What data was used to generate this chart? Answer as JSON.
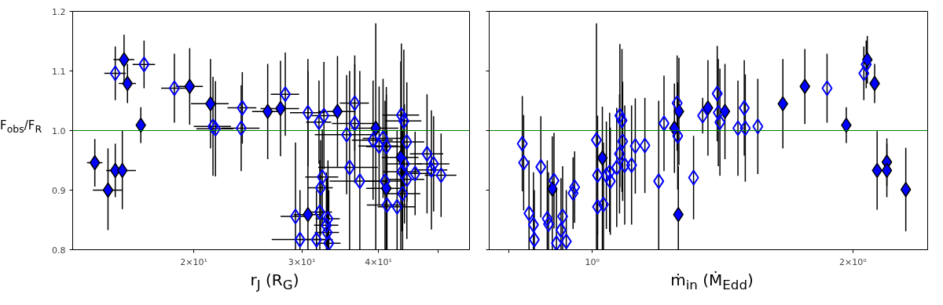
{
  "chart_data": [
    {
      "type": "scatter",
      "xlabel": "r$_{J}$ (R$_{G}$)",
      "ylabel": "F$_{obs}$/F$_{R}$",
      "log": "x",
      "grid": false,
      "marker": "diamond",
      "xlim": [
        12.7,
        56.3
      ],
      "ylim": [
        0.8,
        1.2
      ],
      "xticks": [
        {
          "value": 20,
          "label": "2×10¹"
        },
        {
          "value": 30,
          "label": "3×10¹"
        },
        {
          "value": 40,
          "label": "4×10¹"
        },
        {
          "value": 50,
          "label": null
        }
      ],
      "yticks": [
        {
          "value": 0.8,
          "label": "0.8"
        },
        {
          "value": 0.9,
          "label": "0.9"
        },
        {
          "value": 1.0,
          "label": "1.0"
        },
        {
          "value": 1.1,
          "label": "1.1"
        },
        {
          "value": 1.2,
          "label": "1.2"
        }
      ],
      "ref_lines": [
        {
          "axis": "y",
          "value": 1.0,
          "label": null,
          "color": "#008000"
        }
      ],
      "series": [
        {
          "color": "#0000ff",
          "x": [
            13.8,
            14.5,
            14.9,
            15.3,
            15.4,
            15.6,
            16.4,
            19.7,
            21.3,
            26.4,
            27.7,
            34.3,
            30.7,
            39.6,
            43.5,
            41.2
          ],
          "values": [
            0.946,
            0.9,
            0.933,
            0.933,
            1.119,
            1.079,
            1.009,
            1.074,
            1.045,
            1.032,
            1.037,
            1.032,
            0.859,
            1.004,
            0.955,
            0.903
          ],
          "errors": [
            0.04,
            [
              0.833,
              0.97
            ],
            0.045,
            [
              0.868,
              1.0
            ],
            0.042,
            0.033,
            0.03,
            0.064,
            0.075,
            0.08,
            0.08,
            0.093,
            [
              0.8,
              1.1
            ],
            [
              0.8,
              1.18
            ],
            [
              0.8,
              1.116
            ],
            [
              0.8,
              1.06
            ]
          ],
          "xerrors": [
            0.4,
            0.8,
            0.5,
            0.8,
            0.6,
            0.5,
            null,
            1.0,
            1.5,
            1.5,
            2,
            2.4,
            1.6,
            3.5,
            3,
            3
          ]
        },
        {
          "color": "#0000ff",
          "x": [
            14.9,
            16.6,
            18.6,
            21.5,
            21.7,
            24.0,
            23.9,
            28.2,
            30.7,
            32.0,
            32.6,
            36.6,
            36.6,
            35.5,
            35.9,
            37.3,
            32.4,
            32.2,
            29.3,
            29.8,
            31.7,
            32.1,
            33.1,
            32.9,
            33.2,
            33.0,
            39.2,
            40.1,
            40.7,
            41.2,
            41.0,
            41.3,
            42.9,
            43.6,
            44.0,
            44.5,
            44.1,
            43.7,
            44.5,
            43.8,
            45.9,
            48.0,
            49.2,
            48.8,
            50.6
          ],
          "values": [
            1.096,
            1.111,
            1.071,
            1.007,
            1.003,
            1.038,
            1.004,
            1.061,
            1.03,
            1.014,
            1.025,
            1.046,
            1.012,
            0.993,
            0.938,
            0.915,
            0.922,
            0.904,
            0.856,
            0.817,
            0.817,
            0.863,
            0.852,
            0.841,
            0.811,
            0.829,
            0.984,
            0.974,
            0.987,
            0.973,
            0.915,
            0.875,
            0.872,
            1.026,
            1.016,
            0.981,
            0.944,
            0.931,
            0.918,
            0.894,
            0.928,
            0.961,
            0.944,
            0.934,
            0.925
          ],
          "errors": [
            0.045,
            0.04,
            0.058,
            0.083,
            0.08,
            0.06,
            0.072,
            0.07,
            0.09,
            0.07,
            0.09,
            0.08,
            0.1,
            0.1,
            [
              0.8,
              1.1
            ],
            [
              0.8,
              1.1
            ],
            0.08,
            0.08,
            [
              0.8,
              0.98
            ],
            [
              0.8,
              0.9
            ],
            [
              0.8,
              0.9
            ],
            [
              0.8,
              0.95
            ],
            [
              0.8,
              0.95
            ],
            [
              0.8,
              0.93
            ],
            [
              0.8,
              0.9
            ],
            [
              0.8,
              0.92
            ],
            0.1,
            0.1,
            0.1,
            0.1,
            [
              0.8,
              1.05
            ],
            [
              0.8,
              1.0
            ],
            [
              0.8,
              1.0
            ],
            0.12,
            0.12,
            0.1,
            0.1,
            0.1,
            0.1,
            [
              0.8,
              1.0
            ],
            0.07,
            0.1,
            0.08,
            0.1,
            0.07
          ],
          "xerrors": [
            0.6,
            0.7,
            0.9,
            1.5,
            1.5,
            1.3,
            1.7,
            1.5,
            2,
            1.5,
            1.5,
            2,
            3,
            4,
            4,
            4,
            2,
            1.5,
            1.6,
            3,
            2,
            1.5,
            1.5,
            1.5,
            1.5,
            1.5,
            3,
            3,
            3,
            3,
            3,
            3,
            3,
            3,
            3,
            3,
            3,
            3,
            3,
            3,
            3,
            3,
            3,
            3,
            3
          ]
        }
      ]
    },
    {
      "type": "scatter",
      "xlabel": "ṁ$_{in}$ (Ṁ$_{Edd}$)",
      "log": "x",
      "grid": false,
      "marker": "diamond",
      "tick_labels": "x",
      "xlim": [
        0.76,
        2.44
      ],
      "ylim": [
        0.8,
        1.2
      ],
      "xticks": [
        {
          "value": 0.8,
          "label": null
        },
        {
          "value": 1,
          "label": "10⁰"
        },
        {
          "value": 2,
          "label": "2×10⁰"
        }
      ],
      "yticks": [
        0.8,
        0.9,
        1.0,
        1.1,
        1.2
      ],
      "ref_lines": [
        {
          "axis": "y",
          "value": 1.0,
          "label": null,
          "color": "#008000"
        }
      ],
      "series": [
        {
          "color": "#0000ff",
          "x": [
            0.899,
            1.027,
            1.244,
            1.259,
            1.257,
            1.36,
            1.423,
            1.66,
            1.76,
            1.965,
            2.078,
            2.119,
            2.133,
            2.189,
            2.189,
            2.302
          ],
          "values": [
            0.902,
            0.954,
            1.004,
            1.032,
            0.859,
            1.038,
            1.032,
            1.045,
            1.074,
            1.009,
            1.119,
            1.079,
            0.933,
            0.947,
            0.933,
            0.901
          ],
          "errors": [
            [
              0.8,
              0.99
            ],
            [
              0.8,
              1.04
            ],
            0.075,
            0.09,
            [
              0.8,
              0.94
            ],
            0.08,
            0.08,
            0.075,
            0.063,
            0.03,
            0.04,
            0.033,
            0.066,
            0.04,
            0.045,
            0.07
          ]
        },
        {
          "color": "#0000ff",
          "x": [
            1.341,
            1.394,
            1.398,
            1.404,
            1.473,
            1.502,
            1.498,
            1.553,
            1.867,
            2.059,
            2.072,
            0.83,
            0.833,
            0.872,
            0.845,
            0.855,
            0.857,
            0.903,
            0.887,
            0.89,
            0.924,
            0.92,
            0.909,
            0.933,
            0.954,
            0.95,
            1.011,
            1.014,
            1.014,
            1.03,
            1.038,
            1.049,
            1.047,
            1.067,
            1.075,
            1.076,
            1.082,
            1.084,
            1.09,
            1.11,
            1.121,
            1.15,
            1.193,
            1.21,
            1.253,
            1.255,
            1.309
          ],
          "values": [
            1.025,
            1.062,
            1.03,
            1.014,
            1.004,
            1.004,
            1.038,
            1.007,
            1.071,
            1.096,
            1.111,
            0.978,
            0.946,
            0.939,
            0.861,
            0.842,
            0.817,
            0.916,
            0.852,
            0.843,
            0.856,
            0.833,
            0.811,
            0.814,
            0.905,
            0.895,
            0.984,
            0.925,
            0.872,
            0.876,
            0.925,
            0.915,
            0.93,
            0.938,
            0.961,
            1.025,
            1.017,
            0.982,
            0.942,
            0.942,
            0.974,
            0.975,
            0.915,
            1.012,
            1.046,
            0.991,
            0.921
          ],
          "errors": [
            0.03,
            0.08,
            0.09,
            0.09,
            0.08,
            0.09,
            0.08,
            0.08,
            0.058,
            0.045,
            0.04,
            0.08,
            0.08,
            0.085,
            [
              0.8,
              0.95
            ],
            [
              0.8,
              0.93
            ],
            [
              0.8,
              0.9
            ],
            0.08,
            [
              0.8,
              0.95
            ],
            [
              0.8,
              0.93
            ],
            [
              0.8,
              0.94
            ],
            [
              0.8,
              0.92
            ],
            [
              0.8,
              0.9
            ],
            [
              0.8,
              0.9
            ],
            0.06,
            0.06,
            [
              0.8,
              1.18
            ],
            0.1,
            [
              0.8,
              0.98
            ],
            [
              0.8,
              0.98
            ],
            0.09,
            0.09,
            0.1,
            0.1,
            0.1,
            0.12,
            0.12,
            0.1,
            0.1,
            0.1,
            0.08,
            0.08,
            [
              0.8,
              1.05
            ],
            0.08,
            0.08,
            0.09,
            0.07
          ]
        }
      ]
    }
  ]
}
